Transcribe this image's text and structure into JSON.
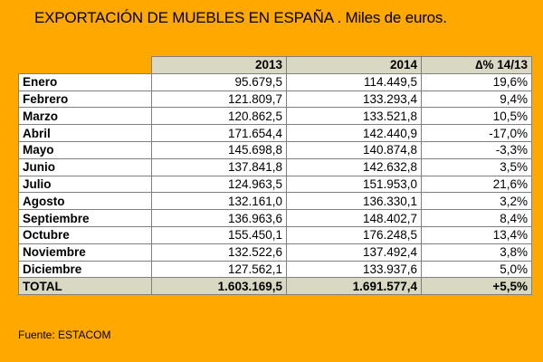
{
  "title": "EXPORTACIÓN DE MUEBLES EN ESPAÑA . Miles de euros.",
  "table": {
    "headers": [
      "",
      "2013",
      "2014",
      "∆% 14/13"
    ],
    "rows": [
      {
        "month": "Enero",
        "y2013": "95.679,5",
        "y2014": "114.449,5",
        "delta": "19,6%"
      },
      {
        "month": "Febrero",
        "y2013": "121.809,7",
        "y2014": "133.293,4",
        "delta": "9,4%"
      },
      {
        "month": "Marzo",
        "y2013": "120.862,5",
        "y2014": "133.521,8",
        "delta": "10,5%"
      },
      {
        "month": "Abril",
        "y2013": "171.654,4",
        "y2014": "142.440,9",
        "delta": "-17,0%"
      },
      {
        "month": "Mayo",
        "y2013": "145.698,8",
        "y2014": "140.874,8",
        "delta": "-3,3%"
      },
      {
        "month": "Junio",
        "y2013": "137.841,8",
        "y2014": "142.632,8",
        "delta": "3,5%"
      },
      {
        "month": "Julio",
        "y2013": "124.963,5",
        "y2014": "151.953,0",
        "delta": "21,6%"
      },
      {
        "month": "Agosto",
        "y2013": "132.161,0",
        "y2014": "136.330,1",
        "delta": "3,2%"
      },
      {
        "month": "Septiembre",
        "y2013": "136.963,6",
        "y2014": "148.402,7",
        "delta": "8,4%"
      },
      {
        "month": "Octubre",
        "y2013": "155.450,1",
        "y2014": "176.248,5",
        "delta": "13,4%"
      },
      {
        "month": "Noviembre",
        "y2013": "132.522,6",
        "y2014": "137.492,4",
        "delta": "3,8%"
      },
      {
        "month": "Diciembre",
        "y2013": "127.562,1",
        "y2014": "133.937,6",
        "delta": "5,0%"
      }
    ],
    "total": {
      "month": "TOTAL",
      "y2013": "1.603.169,5",
      "y2014": "1.691.577,4",
      "delta": "+5,5%"
    }
  },
  "source": "Fuente: ESTACOM",
  "colors": {
    "background": "#FFA800",
    "header_fill": "#D9D9C3",
    "cell_fill": "#FFFFFF",
    "border": "#7F7F7F"
  }
}
